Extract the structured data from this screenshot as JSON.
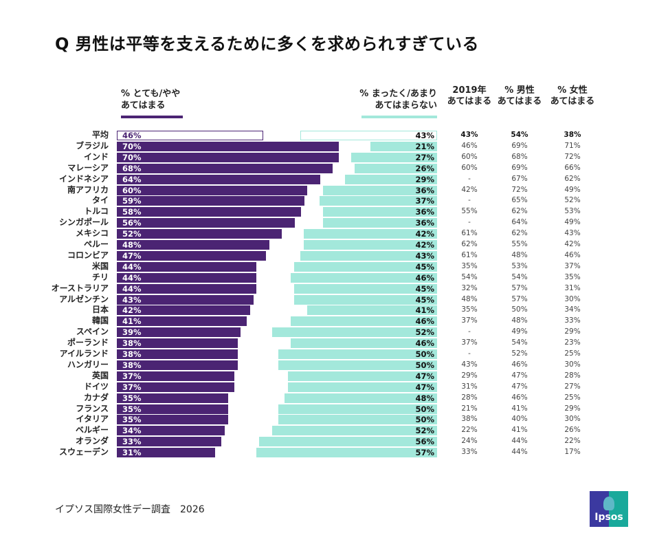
{
  "title": "Q 男性は平等を支えるために多くを求められすぎている",
  "footer": "イプソス国際女性デー調査　2026",
  "logo_text": "Ipsos",
  "colors": {
    "agree": "#4b2473",
    "disagree": "#a3e8db",
    "average_outline": "#4b2473",
    "average_outline_right": "#a3e8db"
  },
  "chart_data": {
    "type": "bar",
    "legend_left": "% とても/やや\nあてはまる",
    "legend_right": "% まったく/あまり\nあてはまらない",
    "columns": [
      "2019年\nあてはまる",
      "% 男性\nあてはまる",
      "% 女性\nあてはまる"
    ],
    "categories": [
      "平均",
      "ブラジル",
      "インド",
      "マレーシア",
      "インドネシア",
      "南アフリカ",
      "タイ",
      "トルコ",
      "シンガポール",
      "メキシコ",
      "ペルー",
      "コロンビア",
      "米国",
      "チリ",
      "オーストラリア",
      "アルゼンチン",
      "日本",
      "韓国",
      "スペイン",
      "ポーランド",
      "アイルランド",
      "ハンガリー",
      "英国",
      "ドイツ",
      "カナダ",
      "フランス",
      "イタリア",
      "ベルギー",
      "オランダ",
      "スウェーデン"
    ],
    "agree": [
      46,
      70,
      70,
      68,
      64,
      60,
      59,
      58,
      56,
      52,
      48,
      47,
      44,
      44,
      44,
      43,
      42,
      41,
      39,
      38,
      38,
      38,
      37,
      37,
      35,
      35,
      35,
      34,
      33,
      31
    ],
    "disagree": [
      43,
      21,
      27,
      26,
      29,
      36,
      37,
      36,
      36,
      42,
      42,
      43,
      45,
      46,
      45,
      45,
      41,
      46,
      52,
      46,
      50,
      50,
      47,
      47,
      48,
      50,
      50,
      52,
      56,
      57
    ],
    "y2019": [
      "43%",
      "46%",
      "60%",
      "60%",
      "-",
      "42%",
      "-",
      "55%",
      "-",
      "61%",
      "62%",
      "61%",
      "35%",
      "54%",
      "32%",
      "48%",
      "35%",
      "37%",
      "-",
      "37%",
      "-",
      "43%",
      "29%",
      "31%",
      "28%",
      "21%",
      "38%",
      "22%",
      "24%",
      "33%"
    ],
    "men": [
      "54%",
      "69%",
      "68%",
      "69%",
      "67%",
      "72%",
      "65%",
      "62%",
      "64%",
      "62%",
      "55%",
      "48%",
      "53%",
      "54%",
      "57%",
      "57%",
      "50%",
      "48%",
      "49%",
      "54%",
      "52%",
      "46%",
      "47%",
      "47%",
      "46%",
      "41%",
      "40%",
      "41%",
      "44%",
      "44%"
    ],
    "women": [
      "38%",
      "71%",
      "72%",
      "66%",
      "62%",
      "49%",
      "52%",
      "53%",
      "49%",
      "43%",
      "42%",
      "46%",
      "37%",
      "35%",
      "31%",
      "30%",
      "34%",
      "33%",
      "29%",
      "23%",
      "25%",
      "30%",
      "28%",
      "27%",
      "25%",
      "29%",
      "30%",
      "26%",
      "22%",
      "17%"
    ],
    "xlim": [
      0,
      100
    ]
  }
}
